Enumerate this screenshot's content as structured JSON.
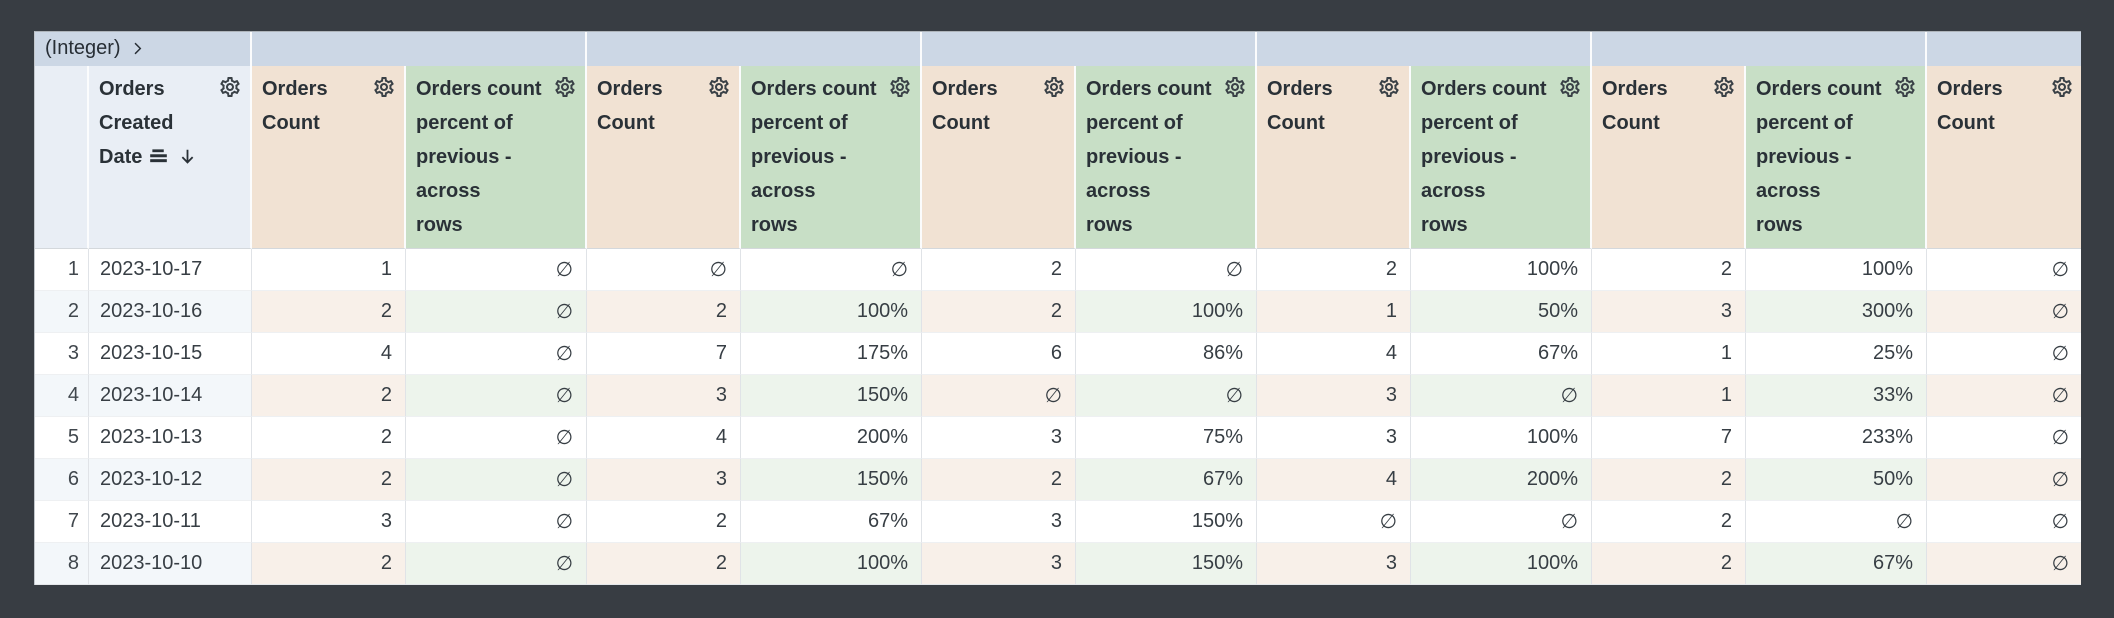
{
  "colors": {
    "frame_background": "#383d43",
    "pivot_header_bg": "#ccd7e5",
    "dimension_header_bg": "#e9eef5",
    "count_header_bg": "#f1e2d3",
    "percent_header_bg": "#c8dfc6",
    "dimension_row_tint": "#f3f7fa",
    "count_row_tint": "#f8f0e9",
    "percent_row_tint": "#edf4ec",
    "text": "#2a3137"
  },
  "pivot_header": {
    "label": "(Integer)",
    "expand_icon": "chevron-right-icon"
  },
  "table": {
    "columns": [
      {
        "key": "row_index",
        "kind": "index",
        "label": "",
        "label_lines": [],
        "has_gear": false
      },
      {
        "key": "orders_created_date",
        "kind": "dimension",
        "label": "Orders Created Date",
        "label_lines": [
          "Orders",
          "Created",
          "Date"
        ],
        "has_gear": true,
        "sorted": "descending",
        "icons": [
          "date-group-icon",
          "sort-descending-icon"
        ]
      },
      {
        "key": "orders_count_1",
        "kind": "count",
        "label": "Orders Count",
        "label_lines": [
          "Orders",
          "Count"
        ],
        "has_gear": true
      },
      {
        "key": "orders_count_percent_of_previous_1",
        "kind": "percent",
        "label": "Orders count percent of previous - across rows",
        "label_lines": [
          "Orders count",
          "percent of",
          "previous -",
          "across",
          "rows"
        ],
        "has_gear": true
      },
      {
        "key": "orders_count_2",
        "kind": "count",
        "label": "Orders Count",
        "label_lines": [
          "Orders",
          "Count"
        ],
        "has_gear": true
      },
      {
        "key": "orders_count_percent_of_previous_2",
        "kind": "percent",
        "label": "Orders count percent of previous - across rows",
        "label_lines": [
          "Orders count",
          "percent of",
          "previous -",
          "across",
          "rows"
        ],
        "has_gear": true
      },
      {
        "key": "orders_count_3",
        "kind": "count",
        "label": "Orders Count",
        "label_lines": [
          "Orders",
          "Count"
        ],
        "has_gear": true
      },
      {
        "key": "orders_count_percent_of_previous_3",
        "kind": "percent",
        "label": "Orders count percent of previous - across rows",
        "label_lines": [
          "Orders count",
          "percent of",
          "previous -",
          "across",
          "rows"
        ],
        "has_gear": true
      },
      {
        "key": "orders_count_4",
        "kind": "count",
        "label": "Orders Count",
        "label_lines": [
          "Orders",
          "Count"
        ],
        "has_gear": true
      },
      {
        "key": "orders_count_percent_of_previous_4",
        "kind": "percent",
        "label": "Orders count percent of previous - across rows",
        "label_lines": [
          "Orders count",
          "percent of",
          "previous -",
          "across",
          "rows"
        ],
        "has_gear": true
      },
      {
        "key": "orders_count_5",
        "kind": "count",
        "label": "Orders Count",
        "label_lines": [
          "Orders",
          "Count"
        ],
        "has_gear": true
      },
      {
        "key": "orders_count_percent_of_previous_5",
        "kind": "percent",
        "label": "Orders count percent of previous - across rows",
        "label_lines": [
          "Orders count",
          "percent of",
          "previous -",
          "across",
          "rows"
        ],
        "has_gear": true
      },
      {
        "key": "orders_count_6",
        "kind": "count",
        "label": "Orders Count",
        "label_lines": [
          "Orders",
          "Count"
        ],
        "has_gear": true
      }
    ],
    "null_symbol": "∅",
    "rows": [
      {
        "index": "1",
        "cells": [
          "2023-10-17",
          "1",
          "∅",
          "∅",
          "∅",
          "2",
          "∅",
          "2",
          "100%",
          "2",
          "100%",
          "∅"
        ]
      },
      {
        "index": "2",
        "cells": [
          "2023-10-16",
          "2",
          "∅",
          "2",
          "100%",
          "2",
          "100%",
          "1",
          "50%",
          "3",
          "300%",
          "∅"
        ]
      },
      {
        "index": "3",
        "cells": [
          "2023-10-15",
          "4",
          "∅",
          "7",
          "175%",
          "6",
          "86%",
          "4",
          "67%",
          "1",
          "25%",
          "∅"
        ]
      },
      {
        "index": "4",
        "cells": [
          "2023-10-14",
          "2",
          "∅",
          "3",
          "150%",
          "∅",
          "∅",
          "3",
          "∅",
          "1",
          "33%",
          "∅"
        ]
      },
      {
        "index": "5",
        "cells": [
          "2023-10-13",
          "2",
          "∅",
          "4",
          "200%",
          "3",
          "75%",
          "3",
          "100%",
          "7",
          "233%",
          "∅"
        ]
      },
      {
        "index": "6",
        "cells": [
          "2023-10-12",
          "2",
          "∅",
          "3",
          "150%",
          "2",
          "67%",
          "4",
          "200%",
          "2",
          "50%",
          "∅"
        ]
      },
      {
        "index": "7",
        "cells": [
          "2023-10-11",
          "3",
          "∅",
          "2",
          "67%",
          "3",
          "150%",
          "∅",
          "∅",
          "2",
          "∅",
          "∅"
        ]
      },
      {
        "index": "8",
        "cells": [
          "2023-10-10",
          "2",
          "∅",
          "2",
          "100%",
          "3",
          "150%",
          "3",
          "100%",
          "2",
          "67%",
          "∅"
        ]
      }
    ]
  }
}
